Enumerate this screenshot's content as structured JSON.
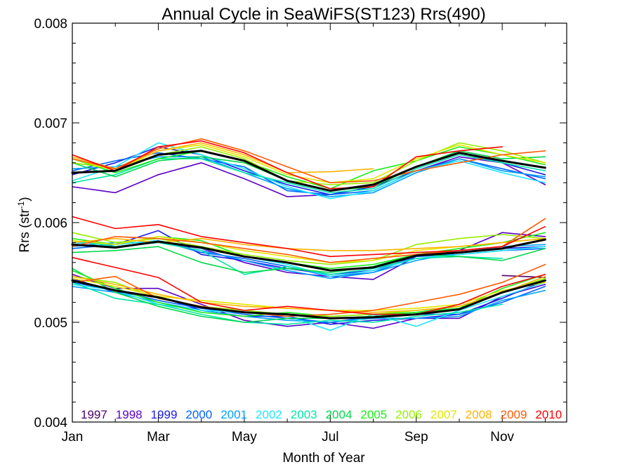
{
  "chart_data": {
    "type": "line",
    "title": "Annual Cycle in SeaWiFS(ST123) Rrs(490)",
    "xlabel": "Month of Year",
    "ylabel_main": "Rrs (str",
    "ylabel_sup": "-1",
    "ylabel_end": ")",
    "xlim": [
      1,
      12.5
    ],
    "ylim": [
      0.004,
      0.008
    ],
    "x_ticks": [
      {
        "value": 1,
        "label": "Jan"
      },
      {
        "value": 3,
        "label": "Mar"
      },
      {
        "value": 5,
        "label": "May"
      },
      {
        "value": 7,
        "label": "Jul"
      },
      {
        "value": 9,
        "label": "Sep"
      },
      {
        "value": 11,
        "label": "Nov"
      }
    ],
    "y_ticks": [
      {
        "value": 0.004,
        "label": "0.004"
      },
      {
        "value": 0.005,
        "label": "0.005"
      },
      {
        "value": 0.006,
        "label": "0.006"
      },
      {
        "value": 0.007,
        "label": "0.007"
      },
      {
        "value": 0.008,
        "label": "0.008"
      }
    ],
    "grid": false,
    "legend_position": "bottom",
    "legend": [
      {
        "label": "1997",
        "color": "#4b0068"
      },
      {
        "label": "1998",
        "color": "#5a00c8"
      },
      {
        "label": "1999",
        "color": "#1a1ae6"
      },
      {
        "label": "2000",
        "color": "#0064ff"
      },
      {
        "label": "2001",
        "color": "#00a0ff"
      },
      {
        "label": "2002",
        "color": "#1ee6ff"
      },
      {
        "label": "2003",
        "color": "#00e6aa"
      },
      {
        "label": "2004",
        "color": "#00d84a"
      },
      {
        "label": "2005",
        "color": "#18ee18"
      },
      {
        "label": "2006",
        "color": "#96ee00"
      },
      {
        "label": "2007",
        "color": "#e6e600"
      },
      {
        "label": "2008",
        "color": "#ffb400"
      },
      {
        "label": "2009",
        "color": "#ff5a00"
      },
      {
        "label": "2010",
        "color": "#ff0000"
      }
    ],
    "groups": [
      {
        "name": "upper",
        "mean": [
          0.0065,
          0.00652,
          0.00668,
          0.00672,
          0.00662,
          0.00642,
          0.00632,
          0.00638,
          0.00656,
          0.0067,
          0.00662,
          0.00655
        ],
        "series": [
          {
            "year": "1998",
            "values": [
              0.00636,
              0.0063,
              0.00648,
              0.0066,
              0.00644,
              0.00626,
              0.00628,
              0.00636,
              0.00652,
              0.00666,
              0.0066,
              0.00638
            ]
          },
          {
            "year": "1999",
            "values": [
              0.00648,
              0.0066,
              0.00676,
              0.00668,
              0.00652,
              0.00638,
              0.00628,
              0.00636,
              0.00656,
              0.0067,
              0.0066,
              0.00648
            ]
          },
          {
            "year": "2000",
            "values": [
              0.00652,
              0.00662,
              0.0067,
              0.00664,
              0.00656,
              0.00632,
              0.00628,
              0.00632,
              0.00652,
              0.00664,
              0.00654,
              0.00644
            ]
          },
          {
            "year": "2001",
            "values": [
              0.00654,
              0.00656,
              0.00666,
              0.00666,
              0.0065,
              0.00634,
              0.00626,
              0.0063,
              0.0065,
              0.00664,
              0.00652,
              0.00646
            ]
          },
          {
            "year": "2002",
            "values": [
              0.00642,
              0.00656,
              0.0068,
              0.00668,
              0.00654,
              0.00636,
              0.00624,
              0.00632,
              0.00652,
              0.00662,
              0.0065,
              0.0064
            ]
          },
          {
            "year": "2003",
            "values": [
              0.0064,
              0.00648,
              0.00664,
              0.00664,
              0.0065,
              0.0064,
              0.0063,
              0.00634,
              0.00654,
              0.00668,
              0.0066,
              0.00652
            ]
          },
          {
            "year": "2004",
            "values": [
              0.0066,
              0.00646,
              0.00662,
              0.00666,
              0.0066,
              0.00642,
              0.00632,
              0.00636,
              0.00656,
              0.00672,
              0.00664,
              0.00666
            ]
          },
          {
            "year": "2005",
            "values": [
              0.00664,
              0.0065,
              0.00664,
              0.00672,
              0.00662,
              0.00646,
              0.00634,
              0.00652,
              0.00662,
              0.00676,
              0.00668,
              0.00658
            ]
          },
          {
            "year": "2006",
            "values": [
              0.0066,
              0.00654,
              0.00668,
              0.00676,
              0.00664,
              0.00642,
              0.00638,
              0.0064,
              0.00662,
              0.0068,
              0.00672,
              0.0066
            ]
          },
          {
            "year": "2007",
            "values": [
              0.00664,
              0.00652,
              0.00672,
              0.00678,
              0.00666,
              0.00648,
              0.0064,
              0.00644,
              0.00664,
              0.00678,
              0.00668,
              0.0066
            ]
          },
          {
            "year": "2008",
            "values": [
              0.00666,
              0.00654,
              0.00672,
              0.0068,
              0.00668,
              0.0065,
              0.00651,
              0.00654,
              null,
              null,
              null,
              null
            ]
          },
          {
            "year": "2009",
            "values": [
              0.00664,
              0.00654,
              0.00674,
              0.00684,
              0.00672,
              0.00656,
              0.0064,
              0.00642,
              0.00652,
              0.0066,
              0.00668,
              0.00672
            ]
          },
          {
            "year": "2010",
            "values": [
              0.00668,
              0.00652,
              0.00676,
              0.00682,
              0.0067,
              0.0065,
              0.00634,
              0.00636,
              0.00666,
              0.00672,
              0.00676,
              null
            ]
          }
        ]
      },
      {
        "name": "middle",
        "mean": [
          0.00578,
          0.00575,
          0.00581,
          0.00575,
          0.00566,
          0.0056,
          0.00552,
          0.00555,
          0.00567,
          0.0057,
          0.00574,
          0.00583
        ],
        "series": [
          {
            "year": "1998",
            "values": [
              0.00578,
              0.00576,
              0.0058,
              0.00574,
              0.0056,
              0.0055,
              0.00546,
              0.00543,
              0.00566,
              0.00572,
              0.0059,
              0.00586
            ]
          },
          {
            "year": "1999",
            "values": [
              0.0058,
              0.00578,
              0.00592,
              0.00568,
              0.00562,
              0.00554,
              0.00548,
              0.00552,
              0.00566,
              0.0057,
              0.00574,
              0.00576
            ]
          },
          {
            "year": "2000",
            "values": [
              0.00574,
              0.00578,
              0.00582,
              0.0057,
              0.00564,
              0.00556,
              0.00546,
              0.0055,
              0.00566,
              0.00568,
              0.00572,
              0.00574
            ]
          },
          {
            "year": "2001",
            "values": [
              0.00576,
              0.0058,
              0.0058,
              0.00572,
              0.00562,
              0.00552,
              0.00544,
              0.0055,
              0.00562,
              0.0057,
              0.00576,
              0.00578
            ]
          },
          {
            "year": "2002",
            "values": [
              0.0058,
              0.00578,
              0.00582,
              0.00574,
              0.00566,
              0.00558,
              0.00546,
              0.00552,
              0.00564,
              0.00568,
              0.00572,
              0.00576
            ]
          },
          {
            "year": "2003",
            "values": [
              0.00582,
              0.00576,
              0.0058,
              0.00572,
              0.00548,
              0.00556,
              0.00548,
              0.00554,
              0.00564,
              0.00566,
              0.00564,
              null
            ]
          },
          {
            "year": "2004",
            "values": [
              0.0057,
              0.00572,
              0.00576,
              0.0056,
              0.0055,
              0.00554,
              0.0055,
              0.00556,
              0.00568,
              0.00566,
              0.00562,
              0.00574
            ]
          },
          {
            "year": "2005",
            "values": [
              0.00584,
              0.00578,
              0.00586,
              0.00582,
              0.00566,
              0.0056,
              0.00554,
              0.00558,
              0.00568,
              0.00574,
              0.0058,
              0.0059
            ]
          },
          {
            "year": "2006",
            "values": [
              0.0059,
              0.0058,
              0.00584,
              0.00576,
              0.00568,
              0.00562,
              0.00558,
              0.00562,
              0.00578,
              0.00584,
              0.00588,
              0.00584
            ]
          },
          {
            "year": "2007",
            "values": [
              0.00582,
              0.00578,
              0.00586,
              0.0058,
              0.00572,
              0.00566,
              0.0056,
              0.00562,
              0.00572,
              0.00576,
              0.0058,
              0.00584
            ]
          },
          {
            "year": "2008",
            "values": [
              0.0058,
              0.00584,
              0.0058,
              0.00584,
              0.00578,
              0.00574,
              0.00572,
              0.00572,
              0.00574,
              0.00576,
              0.0058,
              0.00584
            ]
          },
          {
            "year": "2009",
            "values": [
              0.00576,
              0.00586,
              0.00584,
              0.0058,
              0.00574,
              0.00568,
              0.0056,
              0.00564,
              0.00568,
              0.00572,
              0.00576,
              0.00604
            ]
          },
          {
            "year": "2010",
            "values": [
              0.00606,
              0.00594,
              0.00598,
              0.00586,
              0.0058,
              0.00574,
              0.00566,
              0.00568,
              0.0057,
              0.00572,
              0.00576,
              0.00596
            ]
          }
        ]
      },
      {
        "name": "lower",
        "mean": [
          0.00542,
          0.00532,
          0.00525,
          0.00515,
          0.0051,
          0.00508,
          0.00504,
          0.00505,
          0.00508,
          0.00513,
          0.0053,
          0.00542
        ],
        "series": [
          {
            "year": "1997",
            "values": [
              null,
              null,
              null,
              null,
              null,
              null,
              null,
              null,
              null,
              null,
              0.00547,
              0.00545
            ]
          },
          {
            "year": "1998",
            "values": [
              0.00548,
              0.00534,
              0.00534,
              0.00518,
              0.00502,
              0.00496,
              0.005,
              0.00494,
              0.00504,
              0.00504,
              0.00526,
              0.00538
            ]
          },
          {
            "year": "1999",
            "values": [
              0.00544,
              0.0053,
              0.00526,
              0.00512,
              0.00506,
              0.00506,
              0.00498,
              0.00502,
              0.00504,
              0.00508,
              0.00524,
              0.00542
            ]
          },
          {
            "year": "2000",
            "values": [
              0.0054,
              0.00532,
              0.00522,
              0.00514,
              0.00508,
              0.00504,
              0.005,
              0.00506,
              0.00508,
              0.00508,
              0.0052,
              0.00536
            ]
          },
          {
            "year": "2001",
            "values": [
              0.00536,
              0.0053,
              0.0052,
              0.00512,
              0.00506,
              0.00502,
              0.005,
              0.00504,
              0.00504,
              0.00506,
              0.00522,
              0.00532
            ]
          },
          {
            "year": "2002",
            "values": [
              0.00538,
              0.00532,
              0.00518,
              0.00512,
              0.0051,
              0.00506,
              0.00492,
              0.00508,
              0.00496,
              0.00512,
              0.00526,
              0.0054
            ]
          },
          {
            "year": "2003",
            "values": [
              0.0054,
              0.00524,
              0.00518,
              0.00508,
              0.005,
              0.00498,
              0.00502,
              0.005,
              0.00506,
              0.0051,
              0.00518,
              null
            ]
          },
          {
            "year": "2004",
            "values": [
              0.00554,
              0.0053,
              0.00516,
              0.00506,
              0.005,
              0.00504,
              0.00504,
              0.00506,
              0.0051,
              0.00516,
              0.0053,
              0.00544
            ]
          },
          {
            "year": "2005",
            "values": [
              0.00552,
              0.00534,
              0.0052,
              0.0051,
              0.00506,
              0.0051,
              0.00506,
              0.00508,
              0.0051,
              0.00514,
              0.00534,
              0.00548
            ]
          },
          {
            "year": "2006",
            "values": [
              0.00546,
              0.0054,
              0.00524,
              0.00516,
              0.00512,
              0.00508,
              0.00506,
              0.00508,
              0.00512,
              0.00516,
              0.0053,
              0.00544
            ]
          },
          {
            "year": "2007",
            "values": [
              0.00544,
              0.00536,
              0.00526,
              0.00522,
              0.00518,
              0.00514,
              0.00512,
              0.00512,
              0.00514,
              0.00518,
              0.00532,
              0.0054
            ]
          },
          {
            "year": "2008",
            "values": [
              0.00546,
              0.00538,
              0.00528,
              0.0052,
              0.00516,
              0.00514,
              0.00512,
              0.0051,
              0.00512,
              0.00516,
              0.0053,
              0.00546
            ]
          },
          {
            "year": "2009",
            "values": [
              0.0054,
              0.00546,
              0.00524,
              0.00516,
              0.0051,
              0.00506,
              0.00508,
              0.00512,
              0.0052,
              0.00528,
              0.0054,
              0.00558
            ]
          },
          {
            "year": "2010",
            "values": [
              0.00565,
              0.00555,
              0.00545,
              0.0052,
              0.00512,
              0.00516,
              0.00512,
              0.00508,
              0.00508,
              0.00518,
              0.00536,
              0.00548
            ]
          }
        ]
      }
    ]
  }
}
